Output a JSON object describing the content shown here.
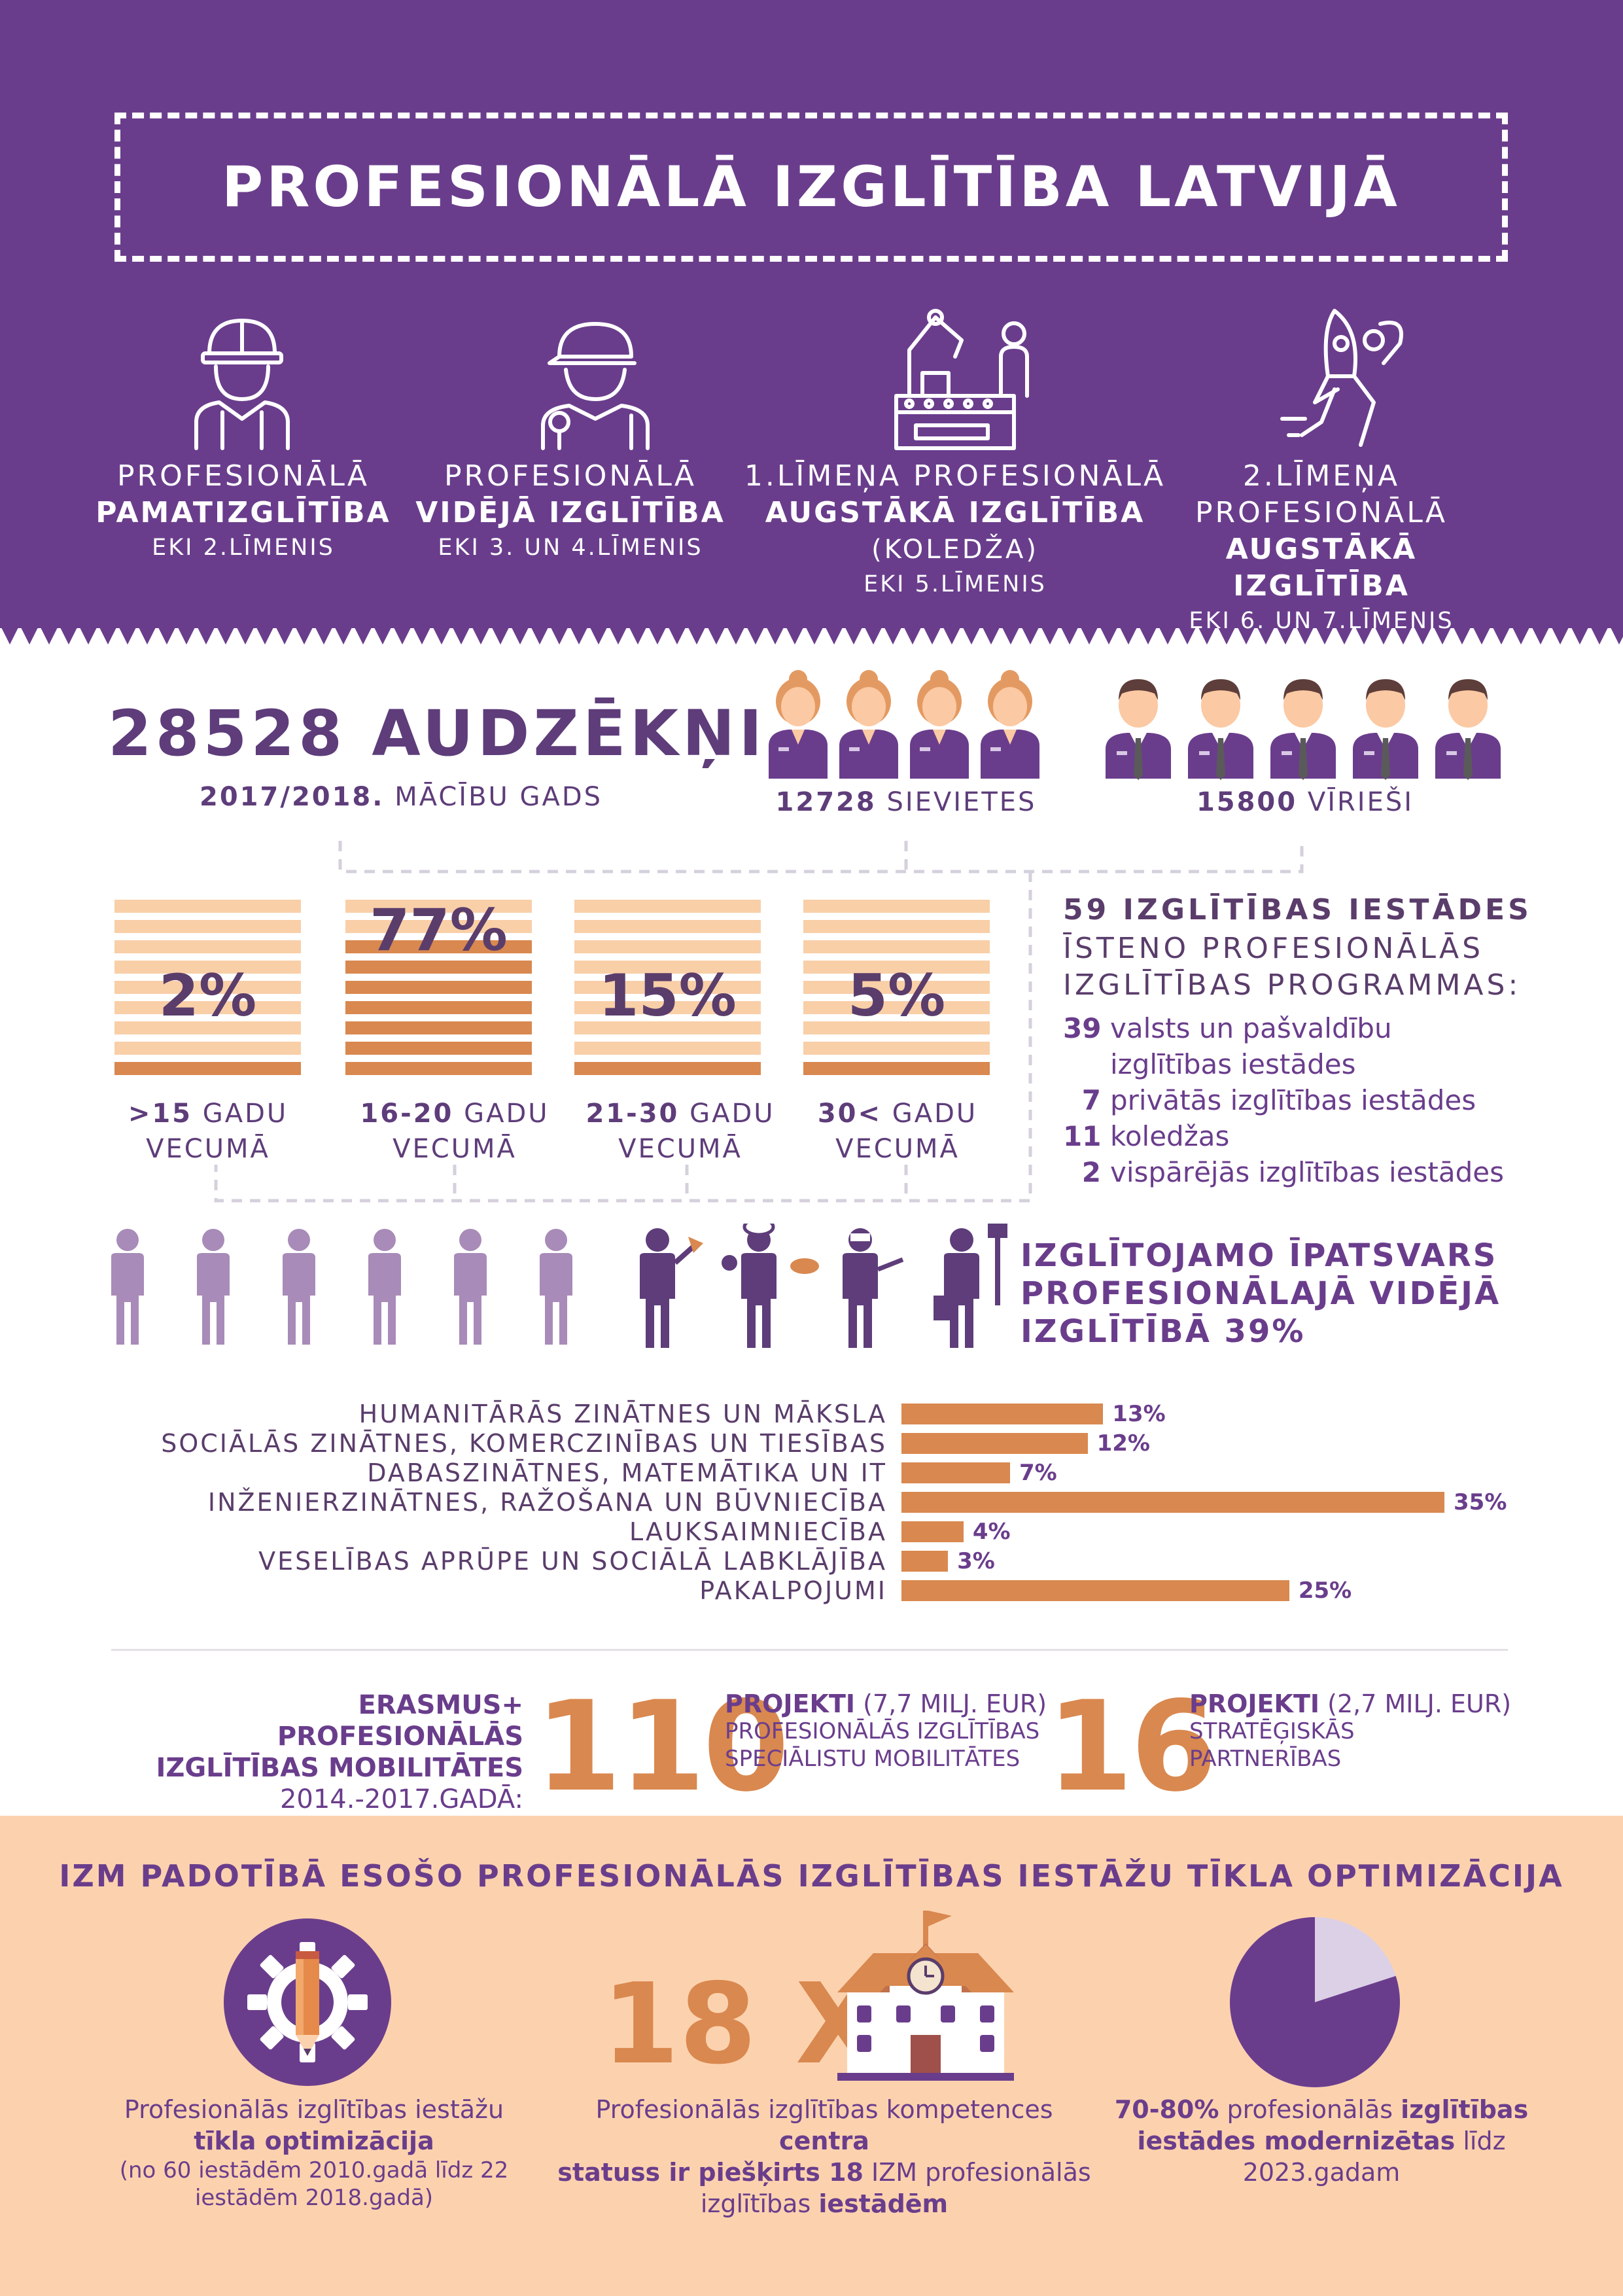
{
  "header": {
    "title": "PROFESIONĀLĀ IZGLĪTĪBA LATVIJĀ",
    "levels": [
      {
        "line1": "PROFESIONĀLĀ",
        "line2": "PAMATIZGLĪTĪBA",
        "line3": "EKI 2.LĪMENIS",
        "line4": ""
      },
      {
        "line1": "PROFESIONĀLĀ",
        "line2": "VIDĒJĀ IZGLĪTĪBA",
        "line3": "EKI 3. UN 4.LĪMENIS",
        "line4": ""
      },
      {
        "line1": "1.LĪMEŅA PROFESIONĀLĀ",
        "line2": "AUGSTĀKĀ IZGLĪTĪBA",
        "line3": "(KOLEDŽA)",
        "line4": "EKI 5.LĪMENIS"
      },
      {
        "line1": "2.LĪMEŅA",
        "line1b": "PROFESIONĀLĀ",
        "line2": "AUGSTĀKĀ IZGLĪTĪBA",
        "line3": "EKI 6. UN 7.LĪMENIS"
      }
    ],
    "icons": [
      "construction-worker-icon",
      "mechanic-icon",
      "factory-robot-icon",
      "rocket-person-icon"
    ]
  },
  "students": {
    "total": "28528 AUDZĒKŅI",
    "year_bold": "2017/2018.",
    "year_text": "MĀCĪBU GADS",
    "women_count": "12728",
    "women_label": "SIEVIETES",
    "men_count": "15800",
    "men_label": "VĪRIEŠI"
  },
  "age_groups": [
    {
      "pct": "2%",
      "value": 2,
      "label_bold": ">15",
      "label_text": "GADU",
      "label2": "VECUMĀ"
    },
    {
      "pct": "77%",
      "value": 77,
      "label_bold": "16-20",
      "label_text": "GADU",
      "label2": "VECUMĀ"
    },
    {
      "pct": "15%",
      "value": 15,
      "label_bold": "21-30",
      "label_text": "GADU",
      "label2": "VECUMĀ"
    },
    {
      "pct": "5%",
      "value": 5,
      "label_bold": "30<",
      "label_text": "GADU",
      "label2": "VECUMĀ"
    }
  ],
  "institutions": {
    "title": "59 IZGLĪTĪBAS IESTĀDES",
    "subtitle1": "ĪSTENO PROFESIONĀLĀS",
    "subtitle2": "IZGLĪTĪBAS PROGRAMMAS:",
    "rows": [
      {
        "n": "39",
        "text": "valsts un pašvaldību"
      },
      {
        "n": "",
        "text": "izglītības iestādes"
      },
      {
        "n": "7",
        "text": "privātās izglītības iestādes"
      },
      {
        "n": "11",
        "text": "koledžas"
      },
      {
        "n": "2",
        "text": "vispārējās izglītības iestādes"
      }
    ]
  },
  "share": {
    "line1": "IZGLĪTOJAMO ĪPATSVARS",
    "line2": "PROFESIONĀLAJĀ VIDĒJĀ",
    "line3": "IZGLĪTĪBĀ 39%"
  },
  "chart_data": {
    "type": "bar",
    "categories": [
      "HUMANITĀRĀS ZINĀTNES UN MĀKSLA",
      "SOCIĀLĀS ZINĀTNES, KOMERCZINĪBAS UN TIESĪBAS",
      "DABASZINĀTNES, MATEMĀTIKA UN IT",
      "INŽENIERZINĀTNES, RAŽOŠANA UN BŪVNIECĪBA",
      "LAUKSAIMNIECĪBA",
      "VESELĪBAS APRŪPE UN SOCIĀLĀ LABKLĀJĪBA",
      "PAKALPOJUMI"
    ],
    "values": [
      13,
      12,
      7,
      35,
      4,
      3,
      25
    ],
    "labels": [
      "13%",
      "12%",
      "7%",
      "35%",
      "4%",
      "3%",
      "25%"
    ],
    "orientation": "horizontal",
    "color": "#d9884f"
  },
  "erasmus": {
    "title1": "ERASMUS+ PROFESIONĀLĀS",
    "title2": "IZGLĪTĪBAS MOBILITĀTES",
    "period": "2014.-2017.GADĀ:",
    "num1": "110",
    "p1_bold": "PROJEKTI",
    "p1_amount": "(7,7 MILJ. EUR)",
    "p1_line2": "PROFESIONĀLĀS IZGLĪTĪBAS",
    "p1_line3": "SPECIĀLISTU MOBILITĀTES",
    "num2": "16",
    "p2_bold": "PROJEKTI",
    "p2_amount": "(2,7 MILJ. EUR)",
    "p2_line2": "STRATĒĢISKĀS",
    "p2_line3": "PARTNERĪBAS"
  },
  "optimization": {
    "title": "IZM PADOTĪBĀ ESOŠO PROFESIONĀLĀS IZGLĪTĪBAS IESTĀŽU TĪKLA OPTIMIZĀCIJA",
    "multiplier": "18 X",
    "col1_line1": "Profesionālās izglītības iestāžu",
    "col1_bold": "tīkla optimizācija",
    "col1_line3": "(no 60 iestādēm 2010.gadā līdz 22",
    "col1_line4": "iestādēm 2018.gadā)",
    "col2_a": "Profesionālās izglītības kompetences",
    "col2_b": "centra",
    "col2_c": "statuss ir piešķirts 18",
    "col2_d": "IZM profesionālās",
    "col2_e": "izglītības",
    "col2_f": "iestādēm",
    "col3_bold1": "70-80%",
    "col3_text1": "profesionālās",
    "col3_bold2": "izglītības",
    "col3_bold3": "iestādes modernizētas",
    "col3_text2": "līdz",
    "col3_text3": "2023.gadam",
    "pie_share": 0.8
  },
  "colors": {
    "purple": "#6a3d8c",
    "orange": "#d9884f",
    "peach": "#fcd2ae",
    "light_purple": "#a88bb8"
  }
}
